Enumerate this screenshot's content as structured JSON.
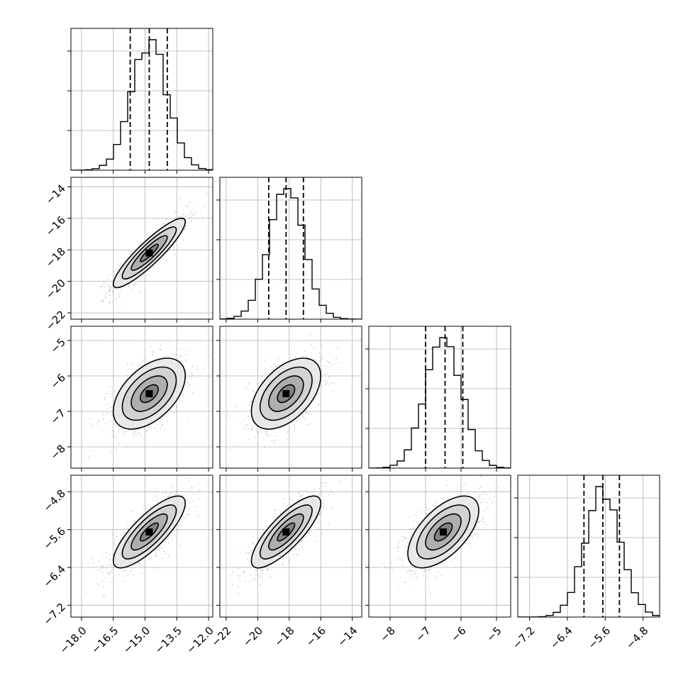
{
  "chart_data": {
    "type": "corner",
    "parameters": [
      {
        "range": [
          -18.5,
          -11.8
        ],
        "ticks": [
          -18.0,
          -16.5,
          -15.0,
          -13.5,
          -12.0
        ],
        "tick_labels": [
          "−18.0",
          "−16.5",
          "−15.0",
          "−13.5",
          "−12.0"
        ],
        "quantiles": [
          -15.7,
          -14.8,
          -13.95
        ],
        "mean": -14.8,
        "sd": 0.85,
        "hist_peak": 1.0
      },
      {
        "range": [
          -22.4,
          -13.4
        ],
        "ticks": [
          -22,
          -20,
          -18,
          -16,
          -14
        ],
        "tick_labels": [
          "−22",
          "−20",
          "−18",
          "−16",
          "−14"
        ],
        "quantiles": [
          -19.3,
          -18.2,
          -17.1
        ],
        "mean": -18.2,
        "sd": 1.1,
        "hist_peak": 1.0
      },
      {
        "range": [
          -8.6,
          -4.6
        ],
        "ticks": [
          -8,
          -7,
          -6,
          -5
        ],
        "tick_labels": [
          "−8",
          "−7",
          "−6",
          "−5"
        ],
        "quantiles": [
          -7.0,
          -6.45,
          -5.95
        ],
        "mean": -6.5,
        "sd": 0.5,
        "hist_peak": 1.0
      },
      {
        "range": [
          -7.45,
          -4.45
        ],
        "ticks": [
          -7.2,
          -6.4,
          -5.6,
          -4.8
        ],
        "tick_labels": [
          "−7.2",
          "−6.4",
          "−5.6",
          "−4.8"
        ],
        "quantiles": [
          -6.05,
          -5.65,
          -5.3
        ],
        "mean": -5.65,
        "sd": 0.38,
        "hist_peak": 1.0
      }
    ],
    "correlations": [
      [
        1,
        0.9,
        0.5,
        0.8
      ],
      [
        0.9,
        1,
        0.5,
        0.8
      ],
      [
        0.5,
        0.5,
        1,
        0.6
      ],
      [
        0.8,
        0.8,
        0.6,
        1
      ]
    ],
    "contour_levels": [
      0.5,
      1.0,
      1.5,
      2.0
    ],
    "quantile_line_style": "dashed",
    "grid": true,
    "point_color": "#999999",
    "line_color": "#000000"
  }
}
